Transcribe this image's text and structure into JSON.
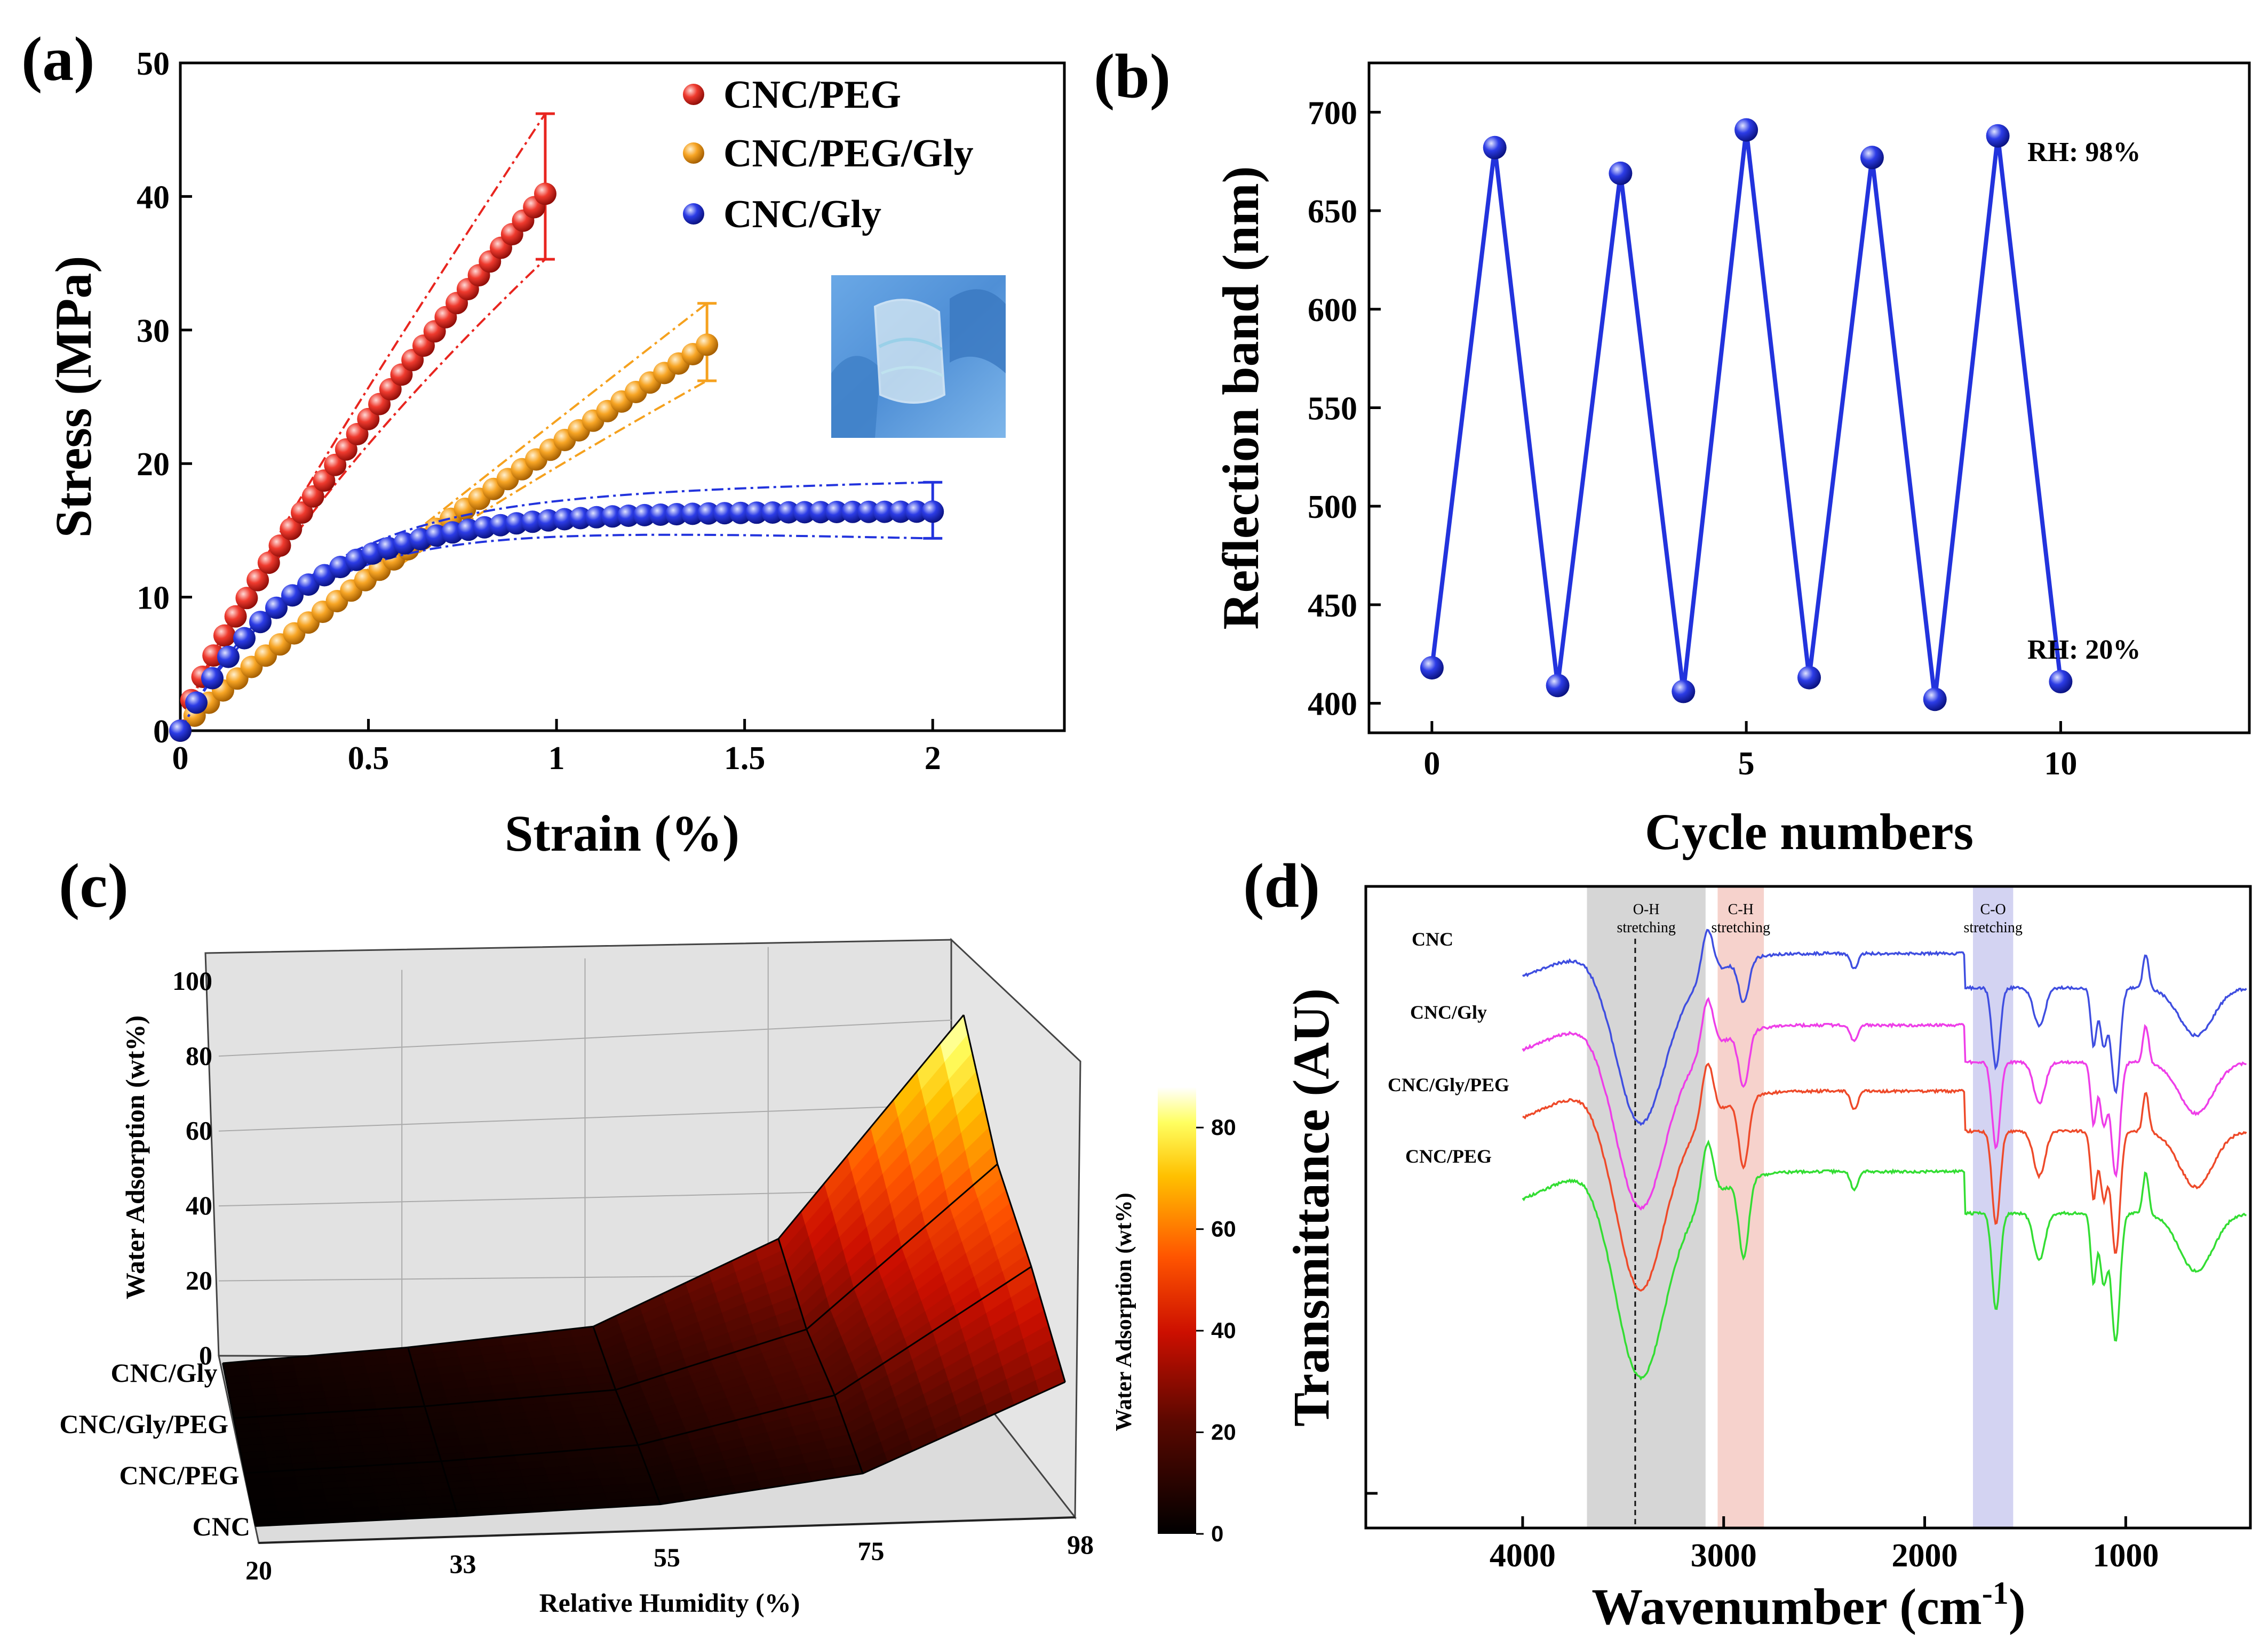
{
  "figure": {
    "panel_labels": [
      "(a)",
      "(b)",
      "(c)",
      "(d)"
    ]
  },
  "colors": {
    "red": "#e8251f",
    "orange": "#f5a11e",
    "blue": "#2233dd",
    "ftir_blue": "#3f4ee0",
    "ftir_magenta": "#ee3ee8",
    "ftir_red": "#ee4a2a",
    "ftir_green": "#33dd33"
  },
  "chart_data": [
    {
      "panel": "(a)",
      "type": "scatter",
      "xlabel": "Strain (%)",
      "ylabel": "Stress (MPa)",
      "xlim": [
        0,
        2.35
      ],
      "ylim": [
        0,
        50
      ],
      "xticks": [
        0,
        0.5,
        1,
        1.5,
        2
      ],
      "xtick_labels": [
        "0",
        "0.5",
        "1",
        "1.5",
        "2"
      ],
      "yticks": [
        0,
        10,
        20,
        30,
        40,
        50
      ],
      "legend_position": "top-right",
      "inset": "photo of a bent transparent film held in blue-gloved fingers",
      "series": [
        {
          "name": "CNC/PEG",
          "color": "red",
          "max_strain": 0.97,
          "max_stress": 40.2,
          "curvature": 0.82,
          "error_bar": [
            35.3,
            46.2
          ],
          "n": 34
        },
        {
          "name": "CNC/PEG/Gly",
          "color": "orange",
          "max_strain": 1.4,
          "max_stress": 28.9,
          "curvature": 0.9,
          "error_bar": [
            26.2,
            32.0
          ],
          "n": 38
        },
        {
          "name": "CNC/Gly",
          "color": "blue",
          "max_strain": 2.0,
          "max_stress": 16.4,
          "plateau": 16.5,
          "error_bar": [
            14.4,
            18.6
          ],
          "n": 48
        }
      ]
    },
    {
      "panel": "(b)",
      "type": "line",
      "xlabel": "Cycle numbers",
      "ylabel": "Reflection band (nm)",
      "xlim": [
        -1,
        13
      ],
      "ylim": [
        385,
        725
      ],
      "xticks": [
        0,
        5,
        10
      ],
      "yticks": [
        400,
        450,
        500,
        550,
        600,
        650,
        700
      ],
      "x": [
        0,
        1,
        2,
        3,
        4,
        5,
        6,
        7,
        8,
        9,
        10
      ],
      "y": [
        418,
        682,
        409,
        669,
        406,
        691,
        413,
        677,
        402,
        688,
        411
      ],
      "annotations": [
        "RH: 98%",
        "RH: 20%"
      ]
    },
    {
      "panel": "(c)",
      "type": "surface",
      "xlabel": "Relative Humidity (%)",
      "ylabel": "Water Adsorption (wt%)",
      "x_categories": [
        "20",
        "33",
        "55",
        "75",
        "98"
      ],
      "y_categories": [
        "CNC",
        "CNC/PEG",
        "CNC/Gly/PEG",
        "CNC/Gly"
      ],
      "z_ticks": [
        "0",
        "20",
        "40",
        "60",
        "80",
        "100"
      ],
      "z": {
        "CNC": [
          0.5,
          1.5,
          3,
          9,
          29
        ],
        "CNC/PEG": [
          1,
          3,
          6,
          17,
          46
        ],
        "CNC/Gly/PEG": [
          2,
          4.5,
          8,
          22,
          60
        ],
        "CNC/Gly": [
          3,
          7,
          12,
          33,
          85
        ]
      },
      "colorbar": {
        "label": "Water Adsorption (wt%)",
        "ticks": [
          "0",
          "20",
          "40",
          "60",
          "80"
        ]
      }
    },
    {
      "panel": "(d)",
      "type": "line",
      "xlabel": "Wavenumber (cm⁻¹)",
      "ylabel": "Transmittance (AU)",
      "xlim": [
        4780,
        380
      ],
      "xticks": [
        4000,
        3000,
        2000,
        1000
      ],
      "series": [
        "CNC",
        "CNC/Gly",
        "CNC/Gly/PEG",
        "CNC/PEG"
      ],
      "bands": [
        {
          "label": "O-H stretching",
          "from": 3680,
          "to": 3090,
          "color": "#d6d6d6"
        },
        {
          "label": "C-H stretching",
          "from": 3030,
          "to": 2800,
          "color": "#f6d2cc"
        },
        {
          "label": "C-O stretching",
          "from": 1760,
          "to": 1560,
          "color": "#d3d3f2"
        }
      ],
      "dashed_line_at": 3440
    }
  ],
  "text": {
    "a_xlabel": "Strain (%)",
    "a_ylabel": "Stress (MPa)",
    "b_xlabel": "Cycle numbers",
    "b_ylabel": "Reflection band (nm)",
    "b_rh_high": "RH: 98%",
    "b_rh_low": "RH: 20%",
    "c_xlabel": "Relative Humidity (%)",
    "c_zlabel": "Water Adsorption (wt%)",
    "c_cblabel": "Water Adsorption (wt%)",
    "d_xlabel_main": "Wavenumber (cm",
    "d_xlabel_sup": "-1",
    "d_xlabel_end": ")",
    "d_ylabel": "Transmittance (AU)",
    "band_oh_1": "O-H",
    "band_oh_2": "stretching",
    "band_ch_1": "C-H",
    "band_ch_2": "stretching",
    "band_co_1": "C-O",
    "band_co_2": "stretching"
  }
}
